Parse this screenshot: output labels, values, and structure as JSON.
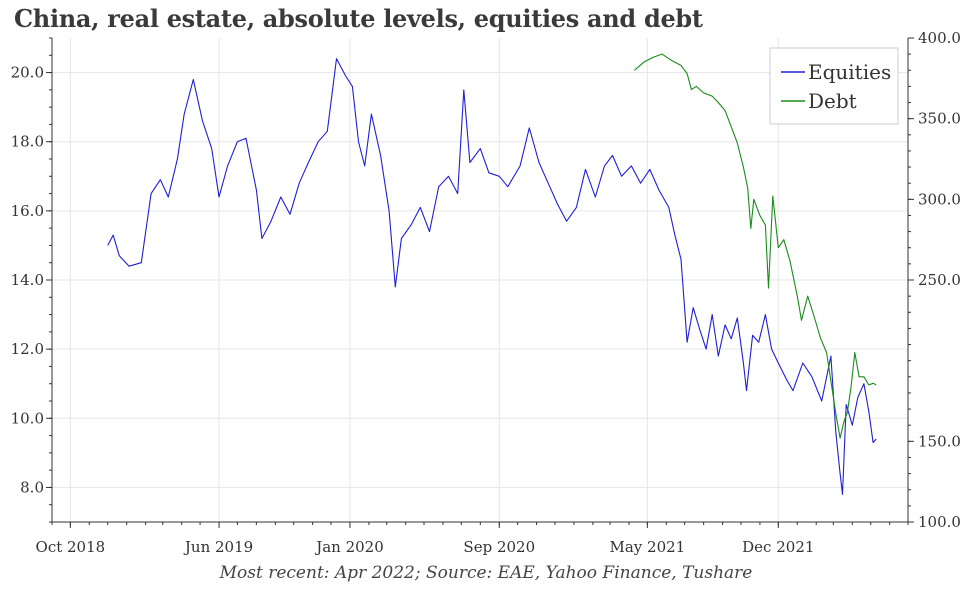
{
  "chart_data": {
    "type": "line",
    "title": "China, real estate, absolute levels, equities and debt",
    "caption": "Most recent: Apr 2022; Source: EAE, Yahoo Finance, Tushare",
    "x_ticks": [
      "Oct 2018",
      "Jun 2019",
      "Jan 2020",
      "Sep 2020",
      "May 2021",
      "Dec 2021"
    ],
    "x_tick_dates": [
      "2018-10-01",
      "2019-06-01",
      "2020-01-01",
      "2020-09-01",
      "2021-05-01",
      "2021-12-01"
    ],
    "xlim": [
      "2018-09-01",
      "2022-07-01"
    ],
    "y_left": {
      "ticks": [
        "8.0",
        "10.0",
        "12.0",
        "14.0",
        "16.0",
        "18.0",
        "20.0"
      ],
      "ylim": [
        7.0,
        21.0
      ]
    },
    "y_right": {
      "ticks": [
        "100.0",
        "150.0",
        "250.0",
        "300.0",
        "350.0",
        "400.0"
      ],
      "ylim": [
        100.0,
        400.0
      ]
    },
    "grid": true,
    "legend_position": "top-right",
    "series": [
      {
        "name": "Equities",
        "axis": "left",
        "color": "#1f1fd6",
        "points": [
          [
            "2018-12-01",
            15.0
          ],
          [
            "2018-12-10",
            15.3
          ],
          [
            "2018-12-20",
            14.7
          ],
          [
            "2019-01-05",
            14.4
          ],
          [
            "2019-01-25",
            14.5
          ],
          [
            "2019-02-10",
            16.5
          ],
          [
            "2019-02-25",
            16.9
          ],
          [
            "2019-03-10",
            16.4
          ],
          [
            "2019-03-25",
            17.5
          ],
          [
            "2019-04-05",
            18.8
          ],
          [
            "2019-04-20",
            19.8
          ],
          [
            "2019-05-05",
            18.6
          ],
          [
            "2019-05-20",
            17.8
          ],
          [
            "2019-06-01",
            16.4
          ],
          [
            "2019-06-15",
            17.3
          ],
          [
            "2019-07-01",
            18.0
          ],
          [
            "2019-07-15",
            18.1
          ],
          [
            "2019-08-01",
            16.6
          ],
          [
            "2019-08-10",
            15.2
          ],
          [
            "2019-08-25",
            15.7
          ],
          [
            "2019-09-10",
            16.4
          ],
          [
            "2019-09-25",
            15.9
          ],
          [
            "2019-10-10",
            16.8
          ],
          [
            "2019-10-25",
            17.4
          ],
          [
            "2019-11-10",
            18.0
          ],
          [
            "2019-11-25",
            18.3
          ],
          [
            "2019-12-10",
            20.4
          ],
          [
            "2019-12-25",
            19.9
          ],
          [
            "2020-01-05",
            19.6
          ],
          [
            "2020-01-15",
            18.0
          ],
          [
            "2020-01-25",
            17.3
          ],
          [
            "2020-02-05",
            18.8
          ],
          [
            "2020-02-20",
            17.6
          ],
          [
            "2020-03-05",
            16.0
          ],
          [
            "2020-03-15",
            13.8
          ],
          [
            "2020-03-25",
            15.2
          ],
          [
            "2020-04-10",
            15.6
          ],
          [
            "2020-04-25",
            16.1
          ],
          [
            "2020-05-10",
            15.4
          ],
          [
            "2020-05-25",
            16.7
          ],
          [
            "2020-06-10",
            17.0
          ],
          [
            "2020-06-25",
            16.5
          ],
          [
            "2020-07-05",
            19.5
          ],
          [
            "2020-07-15",
            17.4
          ],
          [
            "2020-08-01",
            17.8
          ],
          [
            "2020-08-15",
            17.1
          ],
          [
            "2020-09-01",
            17.0
          ],
          [
            "2020-09-15",
            16.7
          ],
          [
            "2020-10-05",
            17.3
          ],
          [
            "2020-10-20",
            18.4
          ],
          [
            "2020-11-05",
            17.4
          ],
          [
            "2020-11-20",
            16.8
          ],
          [
            "2020-12-05",
            16.2
          ],
          [
            "2020-12-20",
            15.7
          ],
          [
            "2021-01-05",
            16.1
          ],
          [
            "2021-01-20",
            17.2
          ],
          [
            "2021-02-05",
            16.4
          ],
          [
            "2021-02-20",
            17.3
          ],
          [
            "2021-03-05",
            17.6
          ],
          [
            "2021-03-20",
            17.0
          ],
          [
            "2021-04-05",
            17.3
          ],
          [
            "2021-04-20",
            16.8
          ],
          [
            "2021-05-05",
            17.2
          ],
          [
            "2021-05-20",
            16.6
          ],
          [
            "2021-06-05",
            16.1
          ],
          [
            "2021-06-15",
            15.3
          ],
          [
            "2021-06-25",
            14.6
          ],
          [
            "2021-07-05",
            12.2
          ],
          [
            "2021-07-15",
            13.2
          ],
          [
            "2021-07-25",
            12.6
          ],
          [
            "2021-08-05",
            12.0
          ],
          [
            "2021-08-15",
            13.0
          ],
          [
            "2021-08-25",
            11.8
          ],
          [
            "2021-09-05",
            12.7
          ],
          [
            "2021-09-15",
            12.3
          ],
          [
            "2021-09-25",
            12.9
          ],
          [
            "2021-10-05",
            11.6
          ],
          [
            "2021-10-10",
            10.8
          ],
          [
            "2021-10-20",
            12.4
          ],
          [
            "2021-10-30",
            12.2
          ],
          [
            "2021-11-10",
            13.0
          ],
          [
            "2021-11-20",
            12.0
          ],
          [
            "2021-12-01",
            11.6
          ],
          [
            "2021-12-15",
            11.1
          ],
          [
            "2021-12-25",
            10.8
          ],
          [
            "2022-01-10",
            11.6
          ],
          [
            "2022-01-25",
            11.2
          ],
          [
            "2022-02-10",
            10.5
          ],
          [
            "2022-02-25",
            11.8
          ],
          [
            "2022-03-05",
            9.6
          ],
          [
            "2022-03-12",
            8.4
          ],
          [
            "2022-03-16",
            7.8
          ],
          [
            "2022-03-22",
            10.4
          ],
          [
            "2022-04-01",
            9.8
          ],
          [
            "2022-04-10",
            10.6
          ],
          [
            "2022-04-20",
            11.0
          ],
          [
            "2022-04-28",
            10.2
          ],
          [
            "2022-05-05",
            9.3
          ],
          [
            "2022-05-10",
            9.4
          ]
        ]
      },
      {
        "name": "Debt",
        "axis": "right",
        "color": "#1a8c1a",
        "points": [
          [
            "2021-04-10",
            380
          ],
          [
            "2021-04-25",
            385
          ],
          [
            "2021-05-10",
            388
          ],
          [
            "2021-05-25",
            390
          ],
          [
            "2021-06-10",
            386
          ],
          [
            "2021-06-25",
            383
          ],
          [
            "2021-07-05",
            378
          ],
          [
            "2021-07-12",
            368
          ],
          [
            "2021-07-20",
            370
          ],
          [
            "2021-08-01",
            366
          ],
          [
            "2021-08-15",
            364
          ],
          [
            "2021-08-25",
            360
          ],
          [
            "2021-09-05",
            355
          ],
          [
            "2021-09-15",
            345
          ],
          [
            "2021-09-25",
            335
          ],
          [
            "2021-10-05",
            320
          ],
          [
            "2021-10-12",
            307
          ],
          [
            "2021-10-17",
            282
          ],
          [
            "2021-10-22",
            300
          ],
          [
            "2021-11-01",
            290
          ],
          [
            "2021-11-10",
            284
          ],
          [
            "2021-11-15",
            245
          ],
          [
            "2021-11-22",
            302
          ],
          [
            "2021-12-01",
            270
          ],
          [
            "2021-12-10",
            275
          ],
          [
            "2021-12-20",
            262
          ],
          [
            "2022-01-01",
            240
          ],
          [
            "2022-01-08",
            225
          ],
          [
            "2022-01-18",
            240
          ],
          [
            "2022-01-28",
            228
          ],
          [
            "2022-02-08",
            214
          ],
          [
            "2022-02-18",
            205
          ],
          [
            "2022-02-28",
            180
          ],
          [
            "2022-03-06",
            165
          ],
          [
            "2022-03-12",
            152
          ],
          [
            "2022-03-18",
            162
          ],
          [
            "2022-03-24",
            168
          ],
          [
            "2022-03-30",
            184
          ],
          [
            "2022-04-05",
            205
          ],
          [
            "2022-04-12",
            190
          ],
          [
            "2022-04-20",
            190
          ],
          [
            "2022-04-28",
            185
          ],
          [
            "2022-05-05",
            186
          ],
          [
            "2022-05-10",
            185
          ]
        ]
      }
    ]
  }
}
